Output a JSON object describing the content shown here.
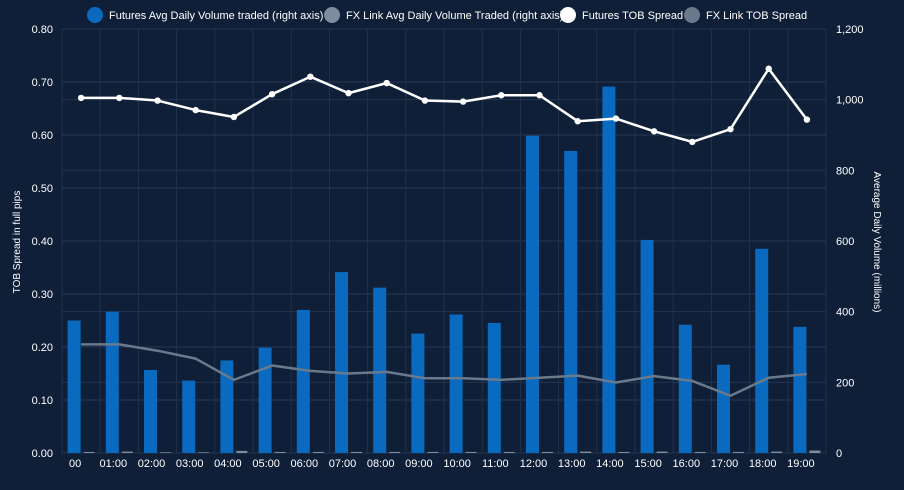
{
  "chart_data": {
    "type": "bar",
    "categories": [
      "00",
      "01:00",
      "02:00",
      "03:00",
      "04:00",
      "05:00",
      "06:00",
      "07:00",
      "08:00",
      "09:00",
      "10:00",
      "11:00",
      "12:00",
      "13:00",
      "14:00",
      "15:00",
      "16:00",
      "17:00",
      "18:00",
      "19:00"
    ],
    "ylabel_left": "TOB Spread in full pips",
    "ylabel_right": "Average Daily Volume (millions)",
    "ylim_left": [
      0,
      0.8
    ],
    "ylim_right": [
      0,
      1200
    ],
    "yticks_left": [
      "0.00",
      "0.10",
      "0.20",
      "0.30",
      "0.40",
      "0.50",
      "0.60",
      "0.70",
      "0.80"
    ],
    "yticks_right": [
      "0",
      "200",
      "400",
      "600",
      "800",
      "1,000",
      "1,200"
    ],
    "grid": true,
    "legend_position": "top",
    "series": [
      {
        "name": "Futures Avg Daily Volume traded (right axis)",
        "kind": "bar",
        "axis": "right",
        "color": "#0a6abf",
        "values": [
          375,
          400,
          235,
          205,
          262,
          298,
          405,
          512,
          468,
          338,
          392,
          368,
          898,
          855,
          1037,
          603,
          363,
          250,
          578,
          357
        ]
      },
      {
        "name": "FX Link Avg Daily Volume Traded (right axis)",
        "kind": "bar",
        "axis": "right",
        "color": "#7d8d9f",
        "values": [
          3,
          4,
          2,
          2,
          6,
          3,
          3,
          3,
          3,
          3,
          3,
          3,
          3,
          4,
          3,
          4,
          3,
          3,
          4,
          7
        ]
      },
      {
        "name": "Futures TOB Spread",
        "kind": "line",
        "axis": "left",
        "color": "#ffffff",
        "values": [
          0.67,
          0.67,
          0.665,
          0.647,
          0.634,
          0.677,
          0.71,
          0.679,
          0.698,
          0.665,
          0.663,
          0.675,
          0.675,
          0.626,
          0.631,
          0.607,
          0.587,
          0.611,
          0.725,
          0.629
        ]
      },
      {
        "name": "FX Link TOB Spread",
        "kind": "line",
        "axis": "left",
        "color": "#6a7a8c",
        "values": [
          0.205,
          0.205,
          0.193,
          0.178,
          0.138,
          0.165,
          0.155,
          0.15,
          0.153,
          0.141,
          0.141,
          0.138,
          0.142,
          0.146,
          0.133,
          0.145,
          0.136,
          0.108,
          0.142,
          0.149
        ]
      }
    ]
  }
}
